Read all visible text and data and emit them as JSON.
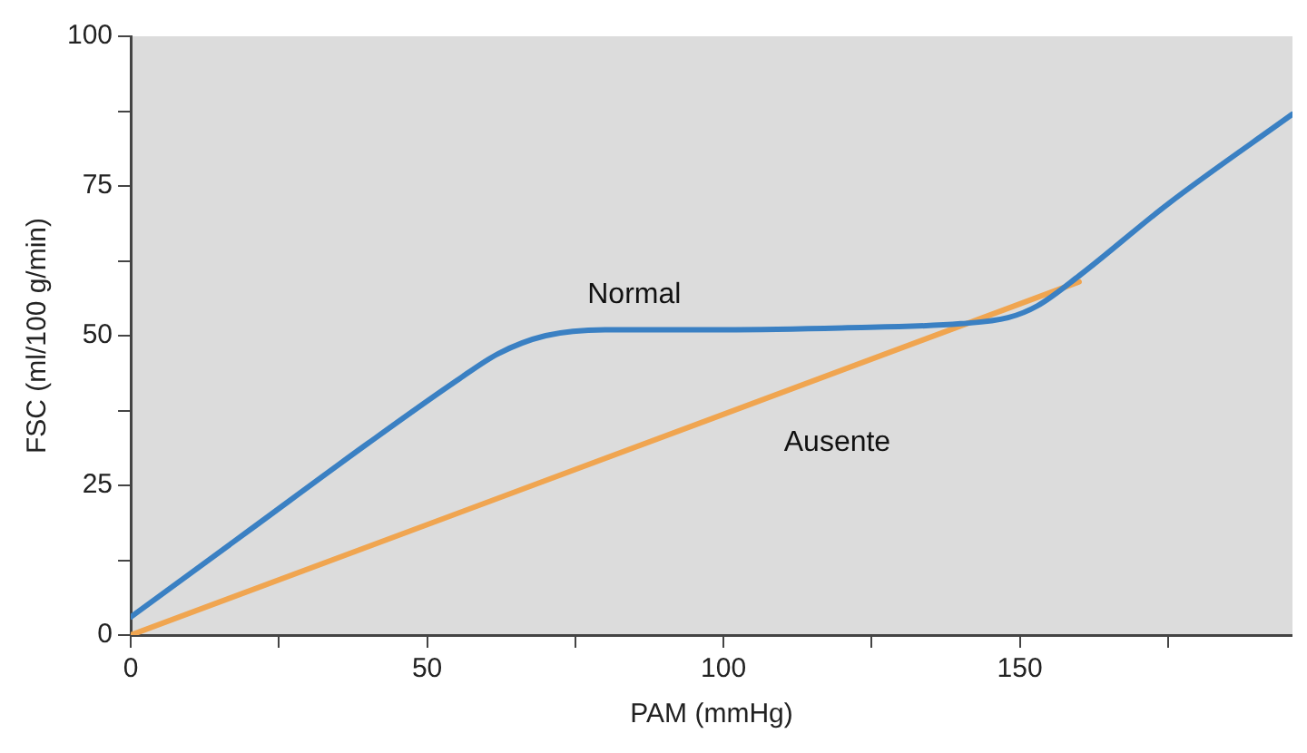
{
  "chart_data": {
    "type": "line",
    "xlabel": "PAM (mmHg)",
    "ylabel": "FSC (ml/100 g/min)",
    "xlim": [
      0,
      196
    ],
    "xticks": [
      0,
      {
        "value": 25,
        "label": null
      },
      50,
      {
        "value": 75,
        "label": null
      },
      100,
      {
        "value": 125,
        "label": null
      },
      150,
      {
        "value": 175,
        "label": null
      }
    ],
    "ylim": [
      0,
      100
    ],
    "yticks": [
      0,
      {
        "value": 12.5,
        "label": null
      },
      25,
      {
        "value": 37.5,
        "label": null
      },
      50,
      {
        "value": 62.5,
        "label": null
      },
      75,
      {
        "value": 87.5,
        "label": null
      },
      100
    ],
    "grid": false,
    "legend": false,
    "marker": "none",
    "line_style": "solid",
    "series": [
      {
        "name": "Normal",
        "color": "#3a80c3",
        "x": [
          0,
          20,
          40,
          55,
          62,
          70,
          80,
          100,
          120,
          140,
          148,
          153,
          160,
          175,
          196
        ],
        "values": [
          3,
          17.5,
          32,
          42.5,
          47,
          50,
          51,
          51,
          51.3,
          52,
          53,
          55,
          60,
          72,
          87
        ]
      },
      {
        "name": "Ausente",
        "color": "#f0a550",
        "x": [
          0,
          160
        ],
        "values": [
          0,
          59
        ]
      }
    ]
  }
}
